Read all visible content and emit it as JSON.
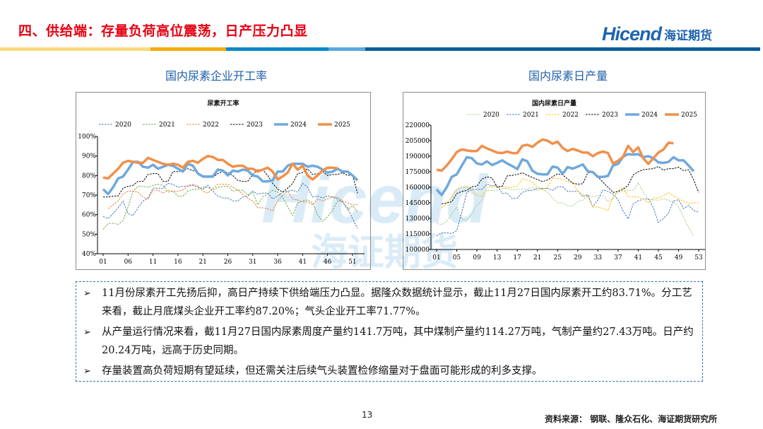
{
  "header": {
    "title": "四、供给端：存量负荷高位震荡，日产压力凸显",
    "logo_en": "Hicend",
    "logo_cn": "海证期货",
    "bar_colors": [
      "#fbd97f",
      "#f2ad00",
      "#0b88c8",
      "#5aa9dd",
      "#0a5c9a"
    ]
  },
  "watermark": {
    "en": "Hicend",
    "cn": "海证期货"
  },
  "chart_data": [
    {
      "type": "line",
      "heading": "国内尿素企业开工率",
      "title": "尿素开工率",
      "xlabel": "",
      "ylabel": "",
      "ylim": [
        40,
        100
      ],
      "yticks": [
        "40%",
        "50%",
        "60%",
        "70%",
        "80%",
        "90%",
        "100%"
      ],
      "xticks": [
        "01",
        "06",
        "11",
        "16",
        "21",
        "26",
        "31",
        "36",
        "41",
        "46",
        "51"
      ],
      "x_range": [
        1,
        53
      ],
      "legend": "top",
      "series": [
        {
          "name": "2020",
          "color": "#4472c4",
          "style": "dashed",
          "width": 1,
          "start": 1,
          "values": [
            59,
            58,
            60.5,
            63.5,
            67,
            60.5,
            59.5,
            63.5,
            67,
            68.5,
            73.5,
            73.5,
            73.5,
            76,
            75.5,
            74,
            74.5,
            74.5,
            75,
            74,
            73,
            75,
            72,
            69.5,
            68.5,
            68.5,
            67,
            67,
            69,
            69.5,
            72,
            70.5,
            71,
            71,
            68,
            69.5,
            71.5,
            72,
            72.5,
            71.5,
            76,
            74,
            69,
            69.5,
            68.5,
            69.5,
            69,
            68,
            66.5,
            63.5,
            58,
            53
          ]
        },
        {
          "name": "2021",
          "color": "#70ad47",
          "style": "dashed",
          "width": 1,
          "start": 1,
          "values": [
            52.5,
            55.5,
            55.5,
            55,
            57,
            64,
            72,
            74.5,
            74.5,
            74,
            75,
            75.5,
            75,
            71.5,
            72,
            69.5,
            69.5,
            72,
            73,
            73,
            74,
            74,
            72.5,
            74,
            74.5,
            74.5,
            72,
            72.5,
            72.5,
            70,
            71.5,
            65,
            69,
            70.5,
            72.5,
            71.5,
            69,
            64,
            59.5,
            66,
            67,
            67.5,
            66,
            60,
            56.5,
            59,
            62,
            67,
            66.5,
            62.5,
            64.5,
            61.5
          ]
        },
        {
          "name": "2022",
          "color": "#ed7d31",
          "style": "dashed",
          "width": 1,
          "start": 2,
          "values": [
            63,
            65,
            67,
            70.5,
            72,
            72,
            71.5,
            69,
            68,
            72.5,
            72.5,
            71,
            72.5,
            72,
            72,
            72.5,
            75,
            75.5,
            74.5,
            72,
            71,
            73.5,
            75.5,
            75.5,
            75.5,
            74,
            72.5,
            70.5,
            68.5,
            67,
            63.5,
            63.5,
            63,
            62,
            67,
            70,
            72,
            68,
            67.5,
            66.5,
            66.5,
            65,
            68,
            67,
            68,
            69,
            69,
            67,
            66,
            65,
            65
          ]
        },
        {
          "name": "2023",
          "color": "#000000",
          "style": "dashed",
          "width": 1,
          "start": 1,
          "values": [
            69,
            69,
            69.5,
            69.5,
            73.5,
            74.5,
            75,
            77,
            77,
            80.5,
            81,
            81,
            77,
            77,
            82,
            82,
            82.5,
            83.5,
            82.5,
            81.5,
            79,
            79,
            79,
            81,
            82,
            81.5,
            80,
            77.5,
            77,
            77,
            80.5,
            83,
            83,
            80,
            76,
            73,
            71.5,
            73.5,
            76,
            81,
            81.5,
            83.5,
            80.5,
            81,
            82,
            80,
            80.5,
            80.5,
            81.5,
            80,
            80.5,
            71
          ]
        },
        {
          "name": "2024",
          "color": "#6fa8dc",
          "style": "solid",
          "width": 3.5,
          "start": 1,
          "values": [
            73,
            70.5,
            74,
            78.5,
            79.5,
            83,
            87,
            87,
            84.5,
            84,
            85.5,
            83.5,
            84.5,
            85.5,
            85,
            83.5,
            82,
            86,
            85,
            81,
            79.5,
            79.5,
            79.5,
            83,
            82.5,
            80,
            82.5,
            82,
            83,
            82.5,
            80,
            79.5,
            77,
            77,
            77.5,
            82,
            82,
            85,
            86,
            86,
            86,
            84.5,
            85,
            84.5,
            83,
            81.5,
            82,
            83.5,
            82,
            82,
            80,
            77.5
          ]
        },
        {
          "name": "2025",
          "color": "#f0904a",
          "style": "solid",
          "width": 3.5,
          "start": 1,
          "values": [
            79,
            78.5,
            81,
            83.5,
            86.5,
            87.5,
            87,
            86.5,
            86.5,
            89,
            88,
            87,
            86,
            85.5,
            86,
            85.5,
            84,
            87,
            87.5,
            86.5,
            88.5,
            90,
            89.5,
            88,
            88,
            86,
            84.5,
            85,
            85,
            83.5,
            83.5,
            82,
            83,
            84,
            82,
            78,
            79.5,
            81.5,
            86,
            83,
            85,
            80,
            78,
            80,
            82.5,
            84,
            84,
            83.7
          ]
        }
      ]
    },
    {
      "type": "line",
      "heading": "国内尿素日产量",
      "title": "国内尿素日产量",
      "xlabel": "",
      "ylabel": "",
      "ylim": [
        100000,
        220000
      ],
      "yticks": [
        "100000",
        "115000",
        "130000",
        "145000",
        "160000",
        "175000",
        "190000",
        "205000",
        "220000"
      ],
      "xticks": [
        "01",
        "05",
        "09",
        "13",
        "17",
        "21",
        "25",
        "29",
        "33",
        "37",
        "41",
        "45",
        "49",
        "53"
      ],
      "x_range": [
        1,
        53
      ],
      "legend": "top",
      "series": [
        {
          "name": "2020",
          "color": "#a9d18e",
          "style": "dashed",
          "width": 1,
          "start": 1,
          "values": [
            125000,
            124000,
            127000,
            134000,
            141000,
            129000,
            128000,
            134000,
            143000,
            147000,
            157000,
            157000,
            157000,
            159000,
            159000,
            157500,
            158000,
            158000,
            158000,
            160000,
            157000,
            158500,
            155000,
            150000,
            145000,
            145000,
            142000,
            142000,
            146000,
            147500,
            152000,
            151000,
            152000,
            152000,
            146000,
            149000,
            155000,
            156000,
            157000,
            157000,
            164500,
            155000,
            148000,
            148000,
            147500,
            149000,
            147500,
            146000,
            141000,
            131000,
            121000,
            113000
          ]
        },
        {
          "name": "2021",
          "color": "#4472c4",
          "style": "dashed",
          "width": 1,
          "start": 1,
          "values": [
            113000,
            116000,
            116000,
            115500,
            118000,
            136000,
            155000,
            158000,
            158000,
            158000,
            163000,
            161500,
            162000,
            154000,
            154500,
            149000,
            149500,
            155000,
            157000,
            157000,
            159000,
            159000,
            159000,
            157000,
            160500,
            160500,
            156000,
            156000,
            156500,
            151000,
            153000,
            141000,
            148000,
            157500,
            156000,
            153500,
            148000,
            137000,
            129500,
            144000,
            147000,
            148500,
            149000,
            140000,
            126000,
            130000,
            135000,
            147000,
            148000,
            139500,
            142500,
            137500,
            136000
          ]
        },
        {
          "name": "2022",
          "color": "#ffc000",
          "style": "dashed",
          "width": 1,
          "start": 2,
          "values": [
            140000,
            144500,
            151000,
            158000,
            160000,
            160500,
            157000,
            152000,
            151000,
            160000,
            160500,
            160500,
            161000,
            160000,
            160000,
            161000,
            168000,
            167000,
            165000,
            160000,
            158000,
            160000,
            168500,
            168500,
            167500,
            165500,
            164500,
            156000,
            153000,
            150500,
            141000,
            141000,
            139500,
            137500,
            151000,
            157000,
            160000,
            151000,
            151000,
            150500,
            148500,
            145000,
            150000,
            149500,
            152000,
            155000,
            152000,
            149000,
            146500,
            144500,
            145000,
            145000
          ]
        },
        {
          "name": "2023",
          "color": "#000000",
          "style": "dashed",
          "width": 1,
          "start": 2,
          "values": [
            144000,
            145000,
            146000,
            154000,
            156000,
            157000,
            160500,
            161000,
            168000,
            170000,
            169000,
            160000,
            161000,
            171000,
            171500,
            172500,
            174000,
            171500,
            169500,
            167500,
            165500,
            167000,
            170000,
            173000,
            172000,
            168000,
            164000,
            163000,
            163500,
            174000,
            175000,
            170000,
            165000,
            160000,
            155000,
            156000,
            158000,
            162000,
            172000,
            175000,
            177000,
            177500,
            178000,
            180000,
            176500,
            178000,
            178000,
            179500,
            176000,
            177000,
            167000,
            155000
          ]
        },
        {
          "name": "2024",
          "color": "#6fa8dc",
          "style": "solid",
          "width": 3.5,
          "start": 1,
          "values": [
            158000,
            152500,
            160000,
            170000,
            172500,
            181000,
            189000,
            188000,
            183000,
            182000,
            185000,
            181500,
            183500,
            186000,
            183000,
            180500,
            177500,
            187000,
            185000,
            176000,
            173000,
            172500,
            172500,
            180000,
            179000,
            173000,
            179500,
            178000,
            180000,
            182000,
            175500,
            174500,
            170000,
            170000,
            171000,
            181000,
            182500,
            189500,
            192000,
            191500,
            192000,
            189000,
            190000,
            188000,
            184000,
            183500,
            184500,
            189000,
            186000,
            186000,
            181000,
            175500
          ]
        },
        {
          "name": "2025",
          "color": "#f0904a",
          "style": "solid",
          "width": 3.5,
          "start": 1,
          "values": [
            177000,
            176000,
            181000,
            187000,
            194000,
            196500,
            195500,
            195000,
            195000,
            200000,
            197500,
            195500,
            193500,
            193000,
            194500,
            193000,
            193000,
            200000,
            201000,
            199000,
            203000,
            206000,
            205000,
            202000,
            204000,
            198000,
            195000,
            197000,
            195500,
            193500,
            193500,
            190000,
            193000,
            194500,
            193000,
            183000,
            185500,
            189500,
            200000,
            194000,
            198500,
            188000,
            182500,
            188000,
            193500,
            196500,
            203000,
            202500
          ]
        }
      ]
    }
  ],
  "commentary": [
    "11月份尿素开工先扬后抑，高日产持续下供给端压力凸显。据隆众数据统计显示，截止11月27日国内尿素开工约83.71%。分工艺来看，截止月底煤头企业开工率约87.20%；气头企业开工率71.77%。",
    "从产量运行情况来看，截11月27日国内尿素周度产量约141.7万吨，其中煤制产量约114.27万吨，气制产量约27.43万吨。日产约20.24万吨，远高于历史同期。",
    "存量装置高负荷短期有望延续，但还需关注后续气头装置检修缩量对于盘面可能形成的利多支撑。"
  ],
  "bullet_glyph": "➢",
  "footer": {
    "page_number": "13",
    "source": "资料来源：  钢联、隆众石化、海证期货研究所"
  }
}
